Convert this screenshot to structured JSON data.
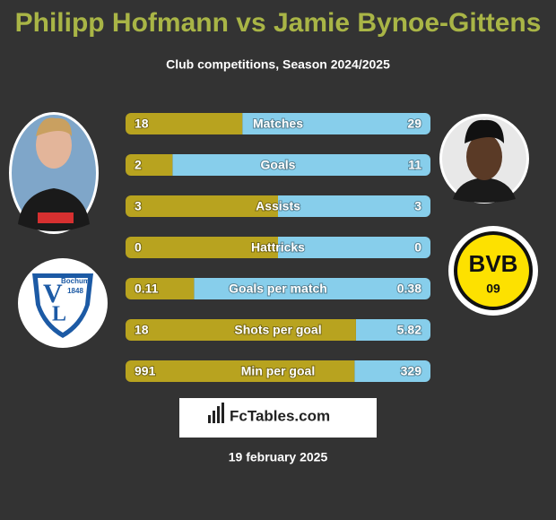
{
  "header": {
    "title": "Philipp Hofmann vs Jamie Bynoe-Gittens",
    "subtitle": "Club competitions, Season 2024/2025"
  },
  "left_club": {
    "name": "Bochum",
    "year": "1848"
  },
  "right_club": {
    "name": "BVB",
    "year": "09"
  },
  "rows": [
    {
      "label": "Matches",
      "left": 18,
      "right": 29
    },
    {
      "label": "Goals",
      "left": 2,
      "right": 11
    },
    {
      "label": "Assists",
      "left": 3,
      "right": 3
    },
    {
      "label": "Hattricks",
      "left": 0,
      "right": 0
    },
    {
      "label": "Goals per match",
      "left": 0.11,
      "right": 0.38
    },
    {
      "label": "Shots per goal",
      "left": 18,
      "right": 5.82
    },
    {
      "label": "Min per goal",
      "left": 991,
      "right": 329
    }
  ],
  "colors": {
    "left": "#b8a31f",
    "right": "#87ceeb"
  },
  "brand": "FcTables.com",
  "date": "19 february 2025"
}
